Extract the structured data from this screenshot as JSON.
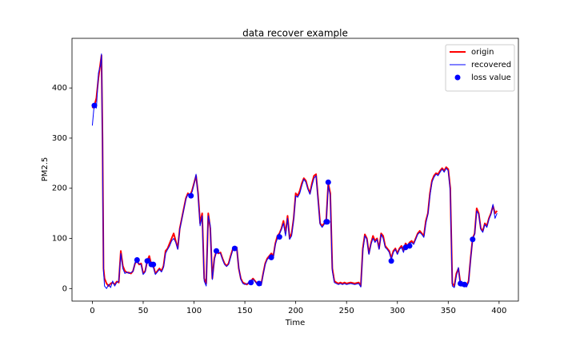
{
  "chart_data": {
    "type": "line",
    "title": "data recover example",
    "x_label": "Time",
    "y_label": "PM2.5",
    "xlim": [
      -20,
      419
    ],
    "ylim": [
      -25,
      499
    ],
    "xticks": [
      0,
      50,
      100,
      150,
      200,
      250,
      300,
      350,
      400
    ],
    "yticks": [
      0,
      100,
      200,
      300,
      400
    ],
    "legend": "upper right",
    "x": [
      0,
      2,
      4,
      6,
      8,
      9,
      10,
      11,
      12,
      14,
      16,
      18,
      20,
      22,
      24,
      26,
      28,
      30,
      32,
      34,
      36,
      38,
      40,
      42,
      44,
      46,
      48,
      50,
      52,
      54,
      56,
      58,
      60,
      62,
      64,
      66,
      68,
      70,
      72,
      74,
      76,
      78,
      80,
      82,
      84,
      86,
      88,
      90,
      92,
      94,
      96,
      98,
      100,
      102,
      104,
      106,
      108,
      110,
      112,
      114,
      116,
      118,
      120,
      122,
      124,
      126,
      128,
      130,
      132,
      134,
      136,
      138,
      140,
      142,
      144,
      146,
      148,
      150,
      152,
      154,
      156,
      158,
      160,
      162,
      164,
      166,
      168,
      170,
      172,
      174,
      176,
      178,
      180,
      182,
      184,
      186,
      188,
      190,
      192,
      194,
      196,
      198,
      200,
      202,
      204,
      206,
      208,
      210,
      212,
      214,
      216,
      218,
      220,
      222,
      224,
      226,
      228,
      230,
      232,
      234,
      236,
      238,
      240,
      242,
      244,
      246,
      248,
      250,
      254,
      258,
      262,
      264,
      266,
      268,
      270,
      272,
      274,
      276,
      278,
      280,
      282,
      284,
      286,
      288,
      290,
      292,
      294,
      296,
      298,
      300,
      302,
      304,
      306,
      308,
      310,
      312,
      314,
      316,
      318,
      320,
      322,
      324,
      326,
      328,
      330,
      332,
      334,
      336,
      338,
      340,
      342,
      344,
      346,
      348,
      350,
      352,
      354,
      356,
      358,
      360,
      362,
      364,
      366,
      368,
      370,
      372,
      374,
      376,
      378,
      380,
      382,
      384,
      386,
      388,
      390,
      392,
      394,
      396,
      398
    ],
    "series": [
      {
        "name": "origin",
        "color": "#ff0000",
        "values": [
          360,
          365,
          380,
          420,
          450,
          465,
          300,
          40,
          20,
          10,
          5,
          10,
          12,
          8,
          14,
          12,
          75,
          45,
          35,
          32,
          32,
          30,
          35,
          50,
          55,
          48,
          50,
          30,
          35,
          55,
          65,
          48,
          45,
          30,
          35,
          40,
          35,
          45,
          75,
          80,
          90,
          100,
          110,
          95,
          80,
          120,
          140,
          160,
          180,
          190,
          185,
          195,
          210,
          225,
          190,
          130,
          150,
          20,
          10,
          150,
          120,
          20,
          60,
          75,
          70,
          72,
          60,
          50,
          45,
          50,
          65,
          78,
          80,
          82,
          40,
          20,
          12,
          10,
          8,
          12,
          15,
          20,
          15,
          10,
          12,
          8,
          30,
          50,
          60,
          65,
          70,
          65,
          90,
          105,
          110,
          120,
          135,
          110,
          145,
          100,
          110,
          140,
          190,
          185,
          195,
          210,
          220,
          215,
          200,
          190,
          210,
          225,
          228,
          180,
          130,
          125,
          130,
          135,
          210,
          190,
          40,
          15,
          12,
          10,
          12,
          10,
          12,
          10,
          12,
          10,
          12,
          5,
          80,
          108,
          100,
          70,
          90,
          105,
          95,
          100,
          80,
          110,
          105,
          85,
          80,
          75,
          60,
          75,
          80,
          70,
          80,
          85,
          75,
          90,
          85,
          92,
          95,
          90,
          100,
          110,
          115,
          110,
          105,
          135,
          150,
          190,
          215,
          225,
          230,
          228,
          235,
          240,
          235,
          242,
          238,
          200,
          10,
          5,
          30,
          40,
          10,
          8,
          10,
          5,
          15,
          60,
          100,
          110,
          160,
          150,
          120,
          115,
          130,
          125,
          140,
          150,
          165,
          150,
          155
        ]
      },
      {
        "name": "recovered",
        "color": "#0000ff",
        "values": [
          325,
          370,
          360,
          430,
          445,
          468,
          290,
          35,
          5,
          0,
          8,
          2,
          15,
          5,
          12,
          14,
          70,
          40,
          30,
          33,
          30,
          32,
          34,
          52,
          52,
          50,
          47,
          28,
          33,
          58,
          60,
          45,
          42,
          28,
          33,
          38,
          33,
          42,
          70,
          78,
          85,
          95,
          100,
          92,
          78,
          118,
          138,
          158,
          178,
          188,
          186,
          192,
          208,
          228,
          185,
          125,
          145,
          15,
          5,
          145,
          125,
          18,
          58,
          72,
          72,
          70,
          58,
          48,
          44,
          48,
          62,
          76,
          82,
          80,
          42,
          18,
          10,
          8,
          10,
          10,
          14,
          18,
          14,
          8,
          10,
          6,
          28,
          48,
          58,
          62,
          68,
          62,
          88,
          100,
          108,
          118,
          130,
          105,
          140,
          98,
          105,
          138,
          185,
          182,
          190,
          205,
          218,
          212,
          198,
          188,
          205,
          220,
          225,
          175,
          128,
          122,
          128,
          133,
          205,
          185,
          35,
          12,
          10,
          8,
          10,
          8,
          10,
          8,
          10,
          8,
          10,
          3,
          75,
          105,
          98,
          68,
          88,
          100,
          92,
          98,
          78,
          108,
          100,
          82,
          78,
          72,
          58,
          72,
          78,
          68,
          78,
          82,
          72,
          88,
          82,
          90,
          92,
          88,
          98,
          108,
          112,
          108,
          102,
          130,
          148,
          185,
          212,
          222,
          228,
          225,
          232,
          238,
          232,
          240,
          235,
          195,
          5,
          2,
          25,
          42,
          5,
          5,
          8,
          3,
          12,
          58,
          98,
          108,
          155,
          148,
          118,
          112,
          128,
          122,
          138,
          148,
          168,
          140,
          150
        ]
      },
      {
        "name": "loss value",
        "color": "#0000ff",
        "type": "scatter",
        "x": [
          2,
          44,
          54,
          58,
          60,
          97,
          122,
          140,
          156,
          164,
          176,
          184,
          230,
          231,
          232,
          294,
          308,
          312,
          362,
          366,
          374
        ],
        "values": [
          365,
          57,
          55,
          48,
          48,
          185,
          75,
          80,
          12,
          10,
          62,
          103,
          133,
          133,
          212,
          55,
          82,
          85,
          10,
          8,
          98
        ]
      }
    ]
  }
}
